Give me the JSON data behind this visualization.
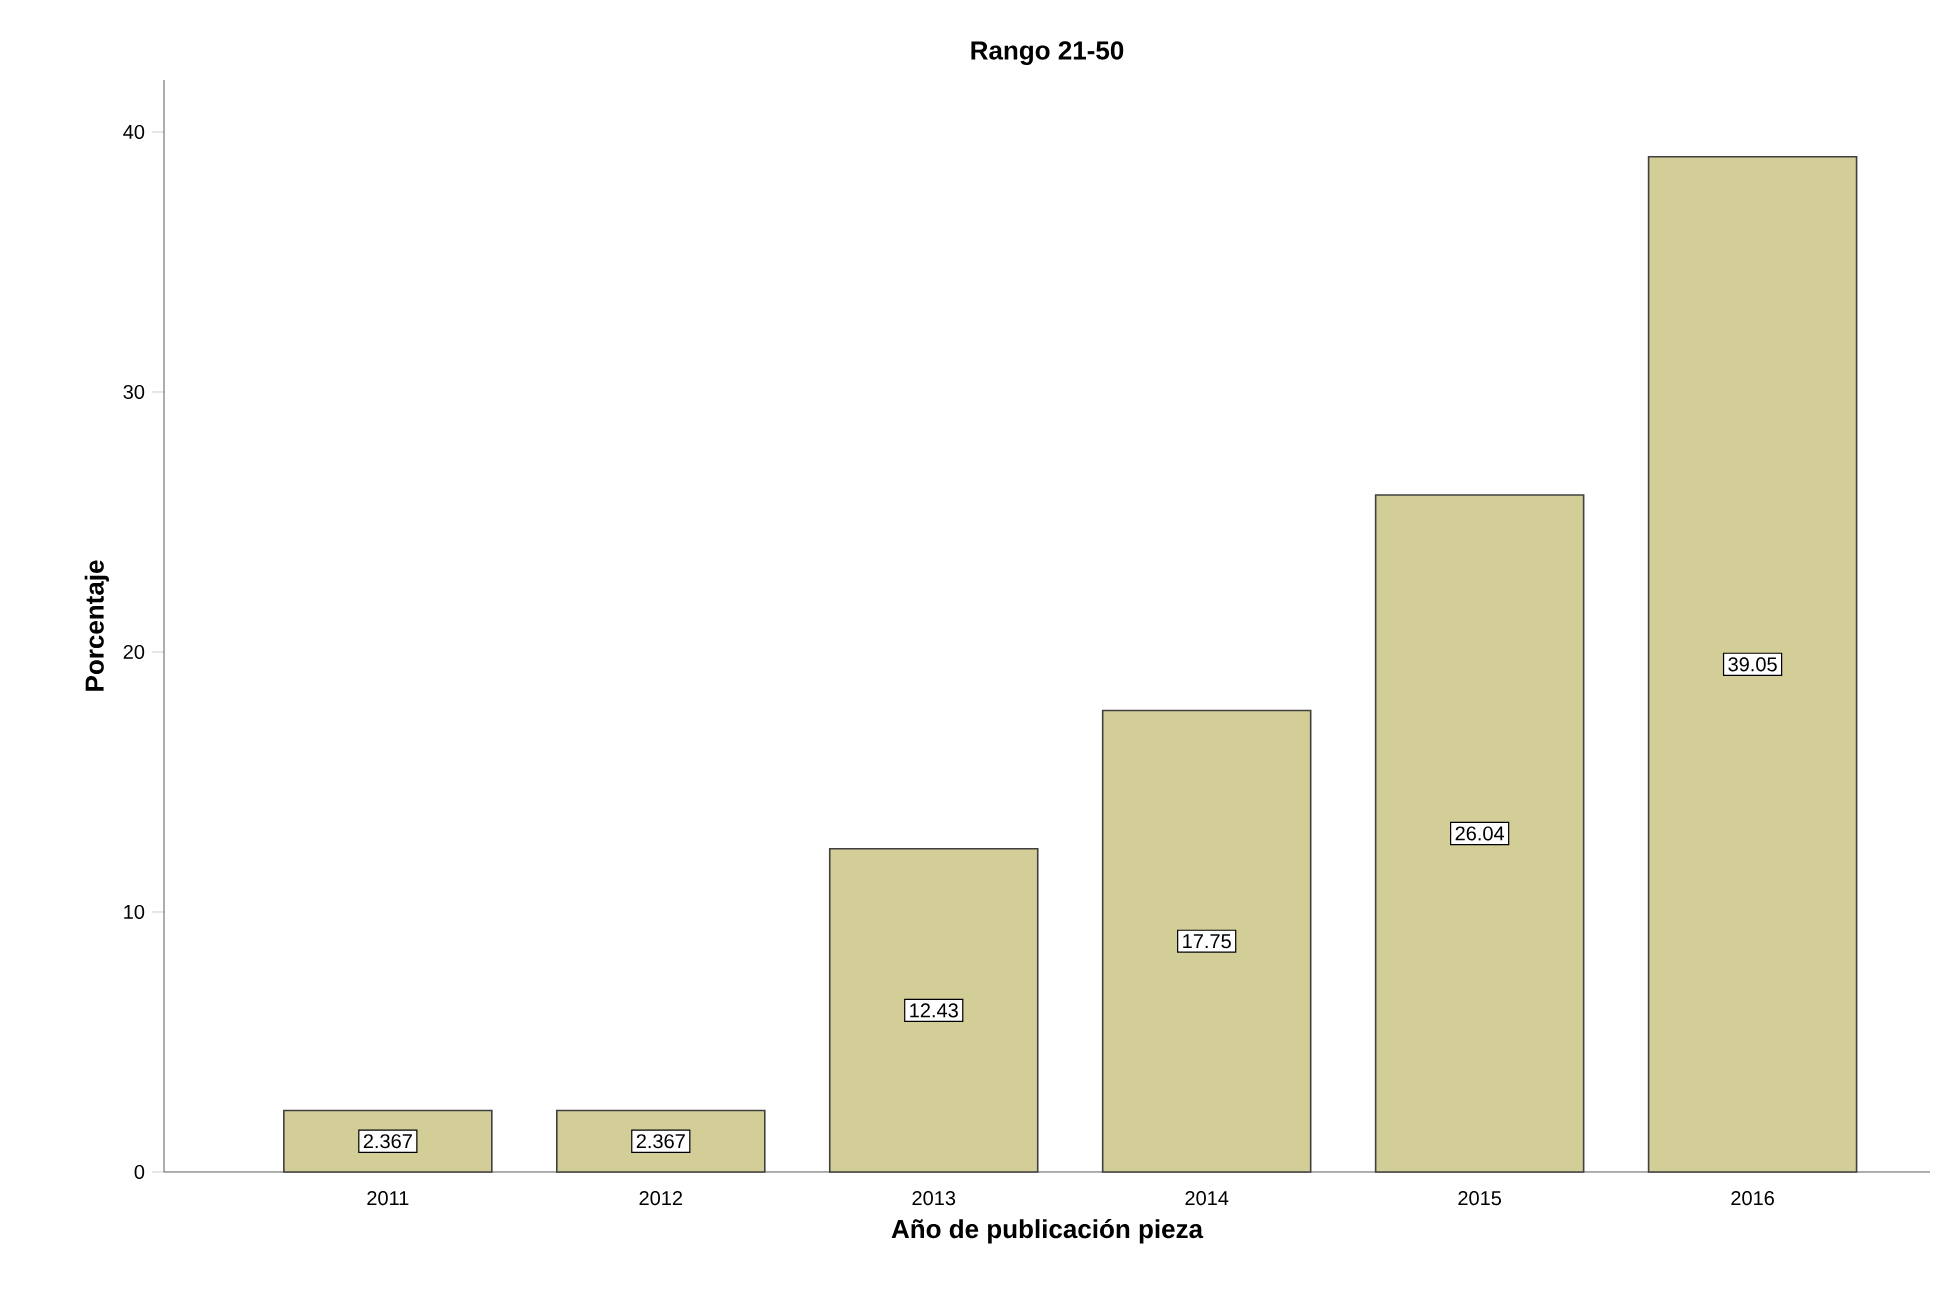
{
  "chart_data": {
    "type": "bar",
    "title": "Rango 21-50",
    "xlabel": "Año de publicación pieza",
    "ylabel": "Porcentaje",
    "categories": [
      "2011",
      "2012",
      "2013",
      "2014",
      "2015",
      "2016"
    ],
    "values": [
      2.367,
      2.367,
      12.43,
      17.75,
      26.04,
      39.05
    ],
    "color": "#d3ce97",
    "ylim": [
      0,
      42
    ],
    "yticks": [
      0,
      10,
      20,
      30,
      40
    ],
    "data_labels": true
  }
}
